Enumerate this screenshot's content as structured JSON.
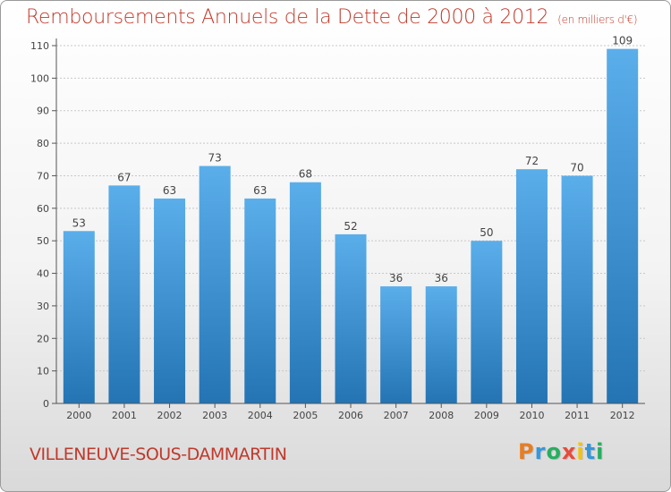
{
  "header": {
    "title": "Remboursements Annuels de la Dette de 2000 à 2012",
    "subtitle": "(en milliers d'€)"
  },
  "footer": {
    "city": "VILLENEUVE-SOUS-DAMMARTIN",
    "logo": "Proxiti",
    "logo_colors": [
      "#e67e22",
      "#3498db",
      "#27ae60",
      "#e74c3c",
      "#f1c40f",
      "#3498db",
      "#27ae60"
    ]
  },
  "colors": {
    "bar_top": "#5aaeea",
    "bar_bottom": "#2474b4",
    "axis": "#555555",
    "grid": "#c8c8c8",
    "title": "#c0392b"
  },
  "chart_data": {
    "type": "bar",
    "title": "Remboursements Annuels de la Dette de 2000 à 2012",
    "subtitle": "(en milliers d'€)",
    "categories": [
      "2000",
      "2001",
      "2002",
      "2003",
      "2004",
      "2005",
      "2006",
      "2007",
      "2008",
      "2009",
      "2010",
      "2011",
      "2012"
    ],
    "values": [
      53,
      67,
      63,
      73,
      63,
      68,
      52,
      36,
      36,
      50,
      72,
      70,
      109
    ],
    "ylim": [
      0,
      110
    ],
    "yticks": [
      0,
      10,
      20,
      30,
      40,
      50,
      60,
      70,
      80,
      90,
      100,
      110
    ],
    "grid": true,
    "legend": "none"
  }
}
